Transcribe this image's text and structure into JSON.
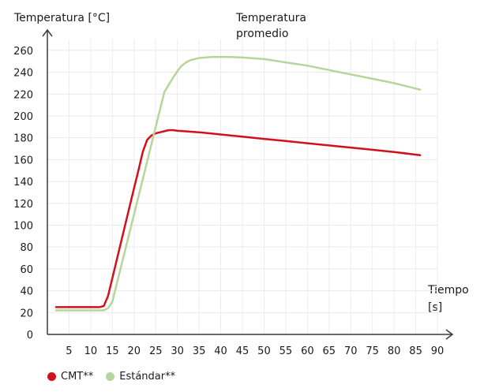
{
  "chart_data": {
    "type": "line",
    "title": "Temperatura promedio",
    "ylabel": "Temperatura [°C]",
    "xlabel": "Tiempo [s]",
    "ylim": [
      0,
      270
    ],
    "xlim": [
      0,
      92
    ],
    "yticks": [
      0,
      20,
      40,
      60,
      80,
      100,
      120,
      140,
      160,
      180,
      200,
      220,
      240,
      260
    ],
    "xticks": [
      5,
      10,
      15,
      20,
      25,
      30,
      35,
      40,
      45,
      50,
      55,
      60,
      65,
      70,
      75,
      80,
      85,
      90
    ],
    "grid": true,
    "legend_position": "bottom-left",
    "series": [
      {
        "name": "CMT**",
        "color": "#d0101c",
        "x": [
          2,
          12,
          13,
          14,
          16,
          18,
          20,
          21,
          22,
          23,
          24,
          25,
          26,
          27,
          28,
          29,
          30,
          35,
          40,
          45,
          50,
          55,
          60,
          65,
          70,
          75,
          80,
          86
        ],
        "y": [
          25,
          25,
          26,
          35,
          68,
          101,
          134,
          150,
          167,
          178,
          182,
          184,
          185,
          186,
          187,
          187,
          186.5,
          185,
          183,
          181,
          179,
          177,
          175,
          173,
          171,
          169,
          167,
          164
        ]
      },
      {
        "name": "Estándar**",
        "color": "#b5d69a",
        "x": [
          2,
          13,
          14,
          15,
          17,
          19,
          21,
          23,
          25,
          27,
          29,
          30,
          31,
          32,
          33,
          35,
          38,
          42,
          45,
          50,
          55,
          60,
          65,
          70,
          75,
          80,
          86
        ],
        "y": [
          22,
          22,
          24,
          30,
          62,
          94,
          126,
          158,
          190,
          222,
          235,
          241,
          246,
          249,
          251,
          253,
          254,
          254,
          253.5,
          252,
          249,
          246,
          242,
          238,
          234,
          230,
          224
        ]
      }
    ]
  }
}
